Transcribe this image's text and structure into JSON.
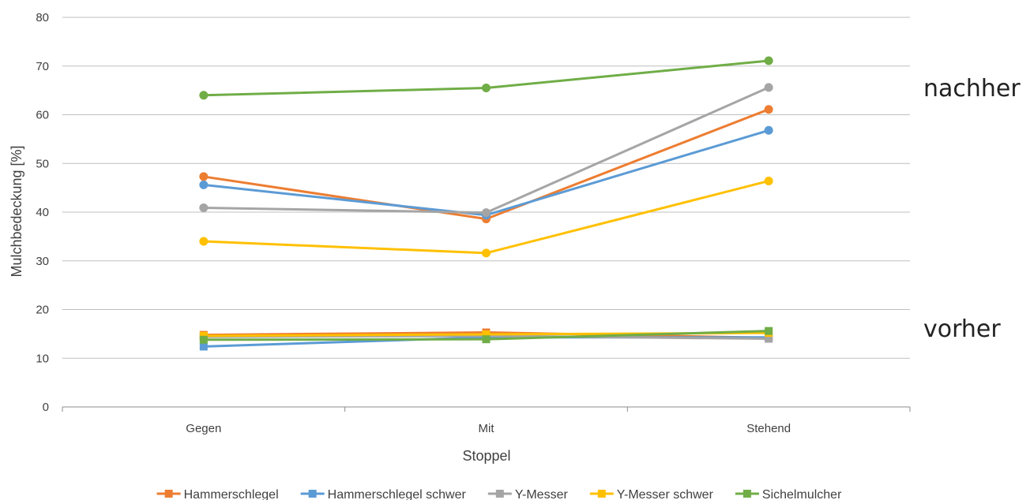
{
  "chart_data": {
    "type": "line",
    "categories": [
      "Gegen",
      "Mit",
      "Stehend"
    ],
    "xlabel": "Stoppel",
    "ylabel": "Mulchbedeckung [%]",
    "ylim": [
      0,
      80
    ],
    "yticks": [
      0,
      10,
      20,
      30,
      40,
      50,
      60,
      70,
      80
    ],
    "grid": true,
    "legend_position": "bottom",
    "annotations": [
      {
        "text": "nachher",
        "anchor_value": 65
      },
      {
        "text": "vorher",
        "anchor_value": 16
      }
    ],
    "series": [
      {
        "name": "Hammerschlegel",
        "color": "#ED7D31",
        "marker": "square",
        "values": [
          14.8,
          15.3,
          14.2
        ]
      },
      {
        "name": "Hammerschlegel schwer",
        "color": "#5B9BD5",
        "marker": "square",
        "values": [
          12.4,
          14.3,
          14.3
        ]
      },
      {
        "name": "Y-Messer",
        "color": "#A5A5A5",
        "marker": "square",
        "values": [
          14.4,
          14.6,
          14.0
        ]
      },
      {
        "name": "Y-Messer schwer",
        "color": "#FFC000",
        "marker": "square",
        "values": [
          14.6,
          14.9,
          15.2
        ]
      },
      {
        "name": "Sichelmulcher",
        "color": "#70AD47",
        "marker": "square",
        "values": [
          13.8,
          13.9,
          15.6
        ]
      },
      {
        "color": "#ED7D31",
        "marker": "circle",
        "values": [
          47.3,
          38.6,
          61.1
        ]
      },
      {
        "color": "#5B9BD5",
        "marker": "circle",
        "values": [
          45.6,
          39.4,
          56.8
        ]
      },
      {
        "color": "#A5A5A5",
        "marker": "circle",
        "values": [
          40.9,
          39.9,
          65.6
        ]
      },
      {
        "color": "#FFC000",
        "marker": "circle",
        "values": [
          34.0,
          31.6,
          46.4
        ]
      },
      {
        "color": "#70AD47",
        "marker": "circle",
        "values": [
          64.0,
          65.5,
          71.1
        ]
      }
    ]
  }
}
